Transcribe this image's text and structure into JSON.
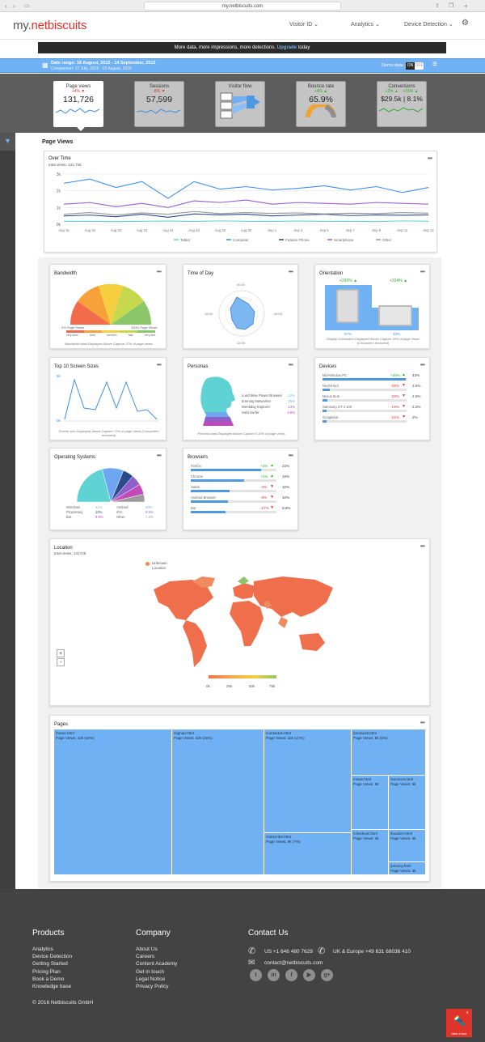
{
  "browser": {
    "url": "my.netbiscuits.com"
  },
  "nav": {
    "logo_prefix": "my.",
    "logo_brand": "netbiscuits",
    "visitor_id": "Visitor ID",
    "analytics": "Analytics",
    "device_detection": "Device Detection"
  },
  "banner": {
    "text": "More data, more impressions, more detections.",
    "link": "Upgrade",
    "suffix": "today"
  },
  "datebar": {
    "range": "Date range: 16 August, 2015 - 14 September, 2015",
    "comparison": "Comparison: 17 July, 2015 - 15 August, 2015",
    "demo_label": "Demo data",
    "toggle_on": "ON",
    "toggle_off": "OFF"
  },
  "kpis": [
    {
      "label": "Page views",
      "change": "+4%",
      "value": "131,726"
    },
    {
      "label": "Sessions",
      "change": "-8%",
      "value": "57,599"
    },
    {
      "label": "Visitor flow"
    },
    {
      "label": "Bounce rate",
      "change": "+4%",
      "value": "65.9%"
    },
    {
      "label": "Conversions",
      "change_a": "+2%",
      "change_b": "+15%",
      "value": "$29.5k | 8.1%"
    }
  ],
  "section_title": "Page Views",
  "overtime": {
    "title": "Over Time",
    "subtitle": "total views: 131,726",
    "chart_data": {
      "type": "line",
      "x": [
        "Aug 16",
        "Aug 18",
        "Aug 20",
        "Aug 22",
        "Aug 24",
        "Aug 26",
        "Aug 28",
        "Aug 30",
        "Sep 1",
        "Sep 3",
        "Sep 5",
        "Sep 7",
        "Sep 9",
        "Sep 11",
        "Sep 13"
      ],
      "ylim": [
        0,
        3000
      ],
      "yticks": [
        "0k",
        "1k",
        "2k",
        "3k"
      ],
      "series": [
        {
          "name": "Tablet",
          "color": "#5fd3d3",
          "values": [
            180,
            170,
            160,
            180,
            190,
            170,
            200,
            180,
            170,
            190,
            180,
            170,
            160,
            200,
            180
          ]
        },
        {
          "name": "Computer",
          "color": "#3f8ee8",
          "values": [
            2450,
            2700,
            2200,
            2550,
            1550,
            2550,
            2100,
            2250,
            2050,
            2150,
            2300,
            2050,
            2250,
            1900,
            2200
          ]
        },
        {
          "name": "Feature Phone",
          "color": "#2a4a8a",
          "values": [
            500,
            550,
            450,
            600,
            420,
            620,
            560,
            600,
            500,
            550,
            600,
            520,
            560,
            540,
            560
          ]
        },
        {
          "name": "Smartphone",
          "color": "#9a5cd0",
          "values": [
            1200,
            1300,
            1050,
            1250,
            1000,
            1400,
            1300,
            1450,
            1200,
            1300,
            1250,
            1200,
            1300,
            1250,
            1200
          ]
        },
        {
          "name": "Other",
          "color": "#999999",
          "values": [
            600,
            700,
            560,
            680,
            600,
            760,
            640,
            700,
            650,
            680,
            620,
            660,
            640,
            700,
            660
          ]
        }
      ]
    }
  },
  "bandwidth": {
    "title": "Bandwidth",
    "left": "0% Page Views",
    "right": "100% Page Views",
    "legend": [
      "very slow",
      "slow",
      "medium",
      "fast",
      "very fast"
    ],
    "note": "Bandwidth data Displayed Above Capture 37% of page views"
  },
  "timeofday": {
    "title": "Time of Day",
    "labels": [
      "00:00",
      "06:00",
      "12:00",
      "18:00"
    ]
  },
  "orientation": {
    "title": "Orientation",
    "portrait_change": "+320%",
    "landscape_change": "+324%",
    "portrait_pct": "67%",
    "landscape_pct": "33%",
    "note": "Display Orientation Displayed Above Capture 25% of page views (Computers excluded)"
  },
  "screens": {
    "title": "Top 10 Screen Sizes",
    "ytop": "6k",
    "ybottom": "0k",
    "note": "Screen size Displayed Above Capture 72% of page views (Computers excluded)"
  },
  "personas": {
    "title": "Personas",
    "items": [
      {
        "label": "Lunchtime Power Browser",
        "pct": "62%"
      },
      {
        "label": "Evening Networker",
        "pct": "25%"
      },
      {
        "label": "Weekday Explorer",
        "pct": "13%"
      },
      {
        "label": "Sofa Surfer",
        "pct": "3.8%"
      }
    ],
    "note": "Persona data Displayed Above Capture 0.10% of page views"
  },
  "devices": {
    "title": "Devices",
    "items": [
      {
        "name": "Mid-Window PC",
        "change": "+39%",
        "pct": "43%",
        "fill": 0.43
      },
      {
        "name": "Nexbit 9x4",
        "change": "-34%",
        "pct": "3.6%",
        "fill": 0.036
      },
      {
        "name": "Nexus 5Lte",
        "change": "-23%",
        "pct": "2.5%",
        "fill": 0.025
      },
      {
        "name": "Samsung GT-J 100",
        "change": "-19%",
        "pct": "2.2%",
        "fill": 0.022
      },
      {
        "name": "Googlebot",
        "change": "-21%",
        "pct": "2%",
        "fill": 0.02
      }
    ]
  },
  "os": {
    "title": "Operating Systems",
    "items": [
      {
        "name": "Windows",
        "pct": "41%",
        "color": "#5fd3d3"
      },
      {
        "name": "Android",
        "pct": "20%",
        "color": "#6fa6f2"
      },
      {
        "name": "Proprietary",
        "pct": "10%",
        "color": "#2a4a8a"
      },
      {
        "name": "iOS",
        "pct": "9.9%",
        "color": "#8f5fc9"
      },
      {
        "name": "Bot",
        "pct": "9.8%",
        "color": "#c04ab8"
      },
      {
        "name": "Other",
        "pct": "7.2%",
        "color": "#9b9b9b"
      }
    ]
  },
  "browsers": {
    "title": "Browsers",
    "items": [
      {
        "name": "Firefox",
        "change": "+3%",
        "pct": "22%",
        "fill": 0.82
      },
      {
        "name": "Chrome",
        "change": "+1%",
        "pct": "15%",
        "fill": 0.62
      },
      {
        "name": "Safari",
        "change": "-4%",
        "pct": "10%",
        "fill": 0.45
      },
      {
        "name": "Android Browser",
        "change": "-9%",
        "pct": "10%",
        "fill": 0.43
      },
      {
        "name": "Bot",
        "change": "-27%",
        "pct": "9.8%",
        "fill": 0.41
      }
    ]
  },
  "location": {
    "title": "Location",
    "subtitle": "total views: 131726",
    "legend_unknown": "Unknown",
    "legend_location": "Location",
    "scale": [
      "0k",
      "25k",
      "50k",
      "75k"
    ],
    "zoom_in": "+",
    "zoom_out": "-"
  },
  "pages": {
    "title": "Pages",
    "items": [
      {
        "path": "/home.html",
        "views": "Page Views: 42k (32%)"
      },
      {
        "path": "/signup.html",
        "views": "Page Views: 32k (25%)"
      },
      {
        "path": "/contactus.html",
        "views": "Page Views: 22k (17%)"
      },
      {
        "path": "/products.html",
        "views": "Page Views: 8k (6%)"
      },
      {
        "path": "/subscribe.html",
        "views": "Page Views: 9k (7%)"
      },
      {
        "path": "/news.html",
        "views": "Page Views: 5k"
      },
      {
        "path": "/services.html",
        "views": "Page Views: 5k"
      },
      {
        "path": "/checkout.html",
        "views": "Page Views: 4k"
      },
      {
        "path": "/location.html",
        "views": "Page Views: 5k"
      },
      {
        "path": "/privacy.html",
        "views": "Page Views: 3k"
      }
    ]
  },
  "footer": {
    "products_title": "Products",
    "products": [
      "Analytics",
      "Device Detection",
      "Getting Started",
      "Pricing Plan",
      "Book a Demo",
      "Knowledge base"
    ],
    "company_title": "Company",
    "company": [
      "About Us",
      "Careers",
      "Content Academy",
      "Get in touch",
      "Legal Notice",
      "Privacy Policy"
    ],
    "contact_title": "Contact Us",
    "phone_us": "US +1 646 480 7629",
    "phone_uk": "UK & Europe +49 631 68036 410",
    "email": "contact@netbiscuits.com",
    "copyright": "© 2016 Netbiscuits GmbH",
    "tour": "take a tour"
  }
}
